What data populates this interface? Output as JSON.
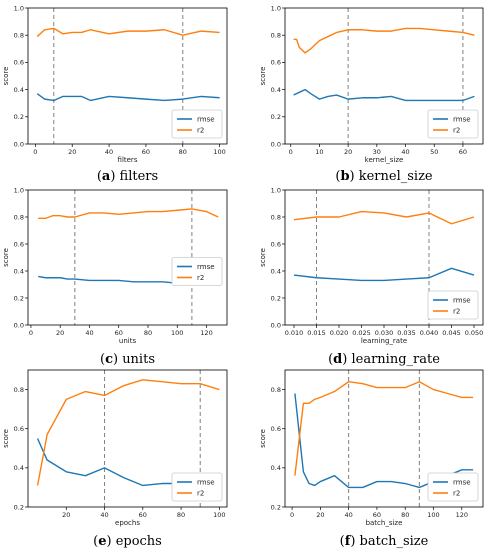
{
  "colors": {
    "rmse": "#1f77b4",
    "r2": "#ff7f0e",
    "vline": "#808080"
  },
  "chart_data": [
    {
      "type": "line",
      "caption_letter": "a",
      "caption_text": " filters",
      "xlabel": "filters",
      "ylabel": "score",
      "xlim": [
        -4,
        104
      ],
      "ylim": [
        0.0,
        1.0
      ],
      "xticks": [
        0,
        20,
        40,
        60,
        80,
        100
      ],
      "xtick_labels": [
        "0",
        "20",
        "40",
        "60",
        "80",
        "100"
      ],
      "yticks": [
        0.0,
        0.2,
        0.4,
        0.6,
        0.8,
        1.0
      ],
      "ytick_labels": [
        "0.0",
        "0.2",
        "0.4",
        "0.6",
        "0.8",
        "1.0"
      ],
      "vlines": [
        10,
        80
      ],
      "legend_position": "bottom-right",
      "series": [
        {
          "name": "rmse",
          "x": [
            1,
            5,
            10,
            15,
            20,
            25,
            30,
            40,
            50,
            60,
            70,
            80,
            90,
            100
          ],
          "y": [
            0.37,
            0.33,
            0.32,
            0.35,
            0.35,
            0.35,
            0.32,
            0.35,
            0.34,
            0.33,
            0.32,
            0.33,
            0.35,
            0.34
          ]
        },
        {
          "name": "r2",
          "x": [
            1,
            5,
            10,
            15,
            20,
            25,
            30,
            40,
            50,
            60,
            70,
            80,
            90,
            100
          ],
          "y": [
            0.79,
            0.84,
            0.85,
            0.81,
            0.82,
            0.82,
            0.84,
            0.81,
            0.83,
            0.83,
            0.84,
            0.8,
            0.83,
            0.82
          ]
        }
      ]
    },
    {
      "type": "line",
      "caption_letter": "b",
      "caption_text": " kernel_size",
      "xlabel": "kernel_size",
      "ylabel": "score",
      "xlim": [
        -2,
        67
      ],
      "ylim": [
        0.0,
        1.0
      ],
      "xticks": [
        0,
        10,
        20,
        30,
        40,
        50,
        60
      ],
      "xtick_labels": [
        "0",
        "10",
        "20",
        "30",
        "40",
        "50",
        "60"
      ],
      "yticks": [
        0.0,
        0.2,
        0.4,
        0.6,
        0.8,
        1.0
      ],
      "ytick_labels": [
        "0.0",
        "0.2",
        "0.4",
        "0.6",
        "0.8",
        "1.0"
      ],
      "vlines": [
        20,
        60
      ],
      "legend_position": "bottom-right",
      "series": [
        {
          "name": "rmse",
          "x": [
            1,
            3,
            5,
            7,
            10,
            13,
            16,
            20,
            25,
            30,
            35,
            40,
            45,
            50,
            55,
            60,
            64
          ],
          "y": [
            0.36,
            0.38,
            0.4,
            0.37,
            0.33,
            0.35,
            0.36,
            0.33,
            0.34,
            0.34,
            0.35,
            0.32,
            0.32,
            0.32,
            0.32,
            0.32,
            0.35
          ]
        },
        {
          "name": "r2",
          "x": [
            1,
            2,
            3,
            5,
            7,
            10,
            13,
            16,
            20,
            25,
            30,
            35,
            40,
            45,
            50,
            55,
            60,
            64
          ],
          "y": [
            0.77,
            0.77,
            0.71,
            0.67,
            0.7,
            0.76,
            0.79,
            0.82,
            0.84,
            0.84,
            0.83,
            0.83,
            0.85,
            0.85,
            0.84,
            0.83,
            0.82,
            0.8
          ]
        }
      ]
    },
    {
      "type": "line",
      "caption_letter": "c",
      "caption_text": " units",
      "xlabel": "units",
      "ylabel": "score",
      "xlim": [
        -2,
        134
      ],
      "ylim": [
        0.0,
        1.0
      ],
      "xticks": [
        0,
        20,
        40,
        60,
        80,
        100,
        120
      ],
      "xtick_labels": [
        "0",
        "20",
        "40",
        "60",
        "80",
        "100",
        "120"
      ],
      "yticks": [
        0.0,
        0.2,
        0.4,
        0.6,
        0.8,
        1.0
      ],
      "ytick_labels": [
        "0.0",
        "0.2",
        "0.4",
        "0.6",
        "0.8",
        "1.0"
      ],
      "vlines": [
        30,
        110
      ],
      "legend_position": "center-right",
      "series": [
        {
          "name": "rmse",
          "x": [
            5,
            10,
            15,
            20,
            25,
            30,
            40,
            50,
            60,
            70,
            80,
            90,
            100,
            110,
            120,
            128
          ],
          "y": [
            0.36,
            0.35,
            0.35,
            0.35,
            0.34,
            0.34,
            0.33,
            0.33,
            0.33,
            0.32,
            0.32,
            0.32,
            0.31,
            0.31,
            0.33,
            0.36
          ]
        },
        {
          "name": "r2",
          "x": [
            5,
            10,
            15,
            20,
            25,
            30,
            40,
            50,
            60,
            70,
            80,
            90,
            100,
            110,
            120,
            128
          ],
          "y": [
            0.79,
            0.79,
            0.81,
            0.81,
            0.8,
            0.8,
            0.83,
            0.83,
            0.82,
            0.83,
            0.84,
            0.84,
            0.85,
            0.86,
            0.84,
            0.8
          ]
        }
      ]
    },
    {
      "type": "line",
      "caption_letter": "d",
      "caption_text": " learning_rate",
      "xlabel": "learning_rate",
      "ylabel": "score",
      "xlim": [
        0.008,
        0.052
      ],
      "ylim": [
        0.0,
        1.0
      ],
      "xticks": [
        0.01,
        0.015,
        0.02,
        0.025,
        0.03,
        0.035,
        0.04,
        0.045,
        0.05
      ],
      "xtick_labels": [
        "0.010",
        "0.015",
        "0.020",
        "0.025",
        "0.030",
        "0.035",
        "0.040",
        "0.045",
        "0.050"
      ],
      "yticks": [
        0.0,
        0.2,
        0.4,
        0.6,
        0.8,
        1.0
      ],
      "ytick_labels": [
        "0.0",
        "0.2",
        "0.4",
        "0.6",
        "0.8",
        "1.0"
      ],
      "vlines": [
        0.015,
        0.04
      ],
      "legend_position": "bottom-right",
      "series": [
        {
          "name": "rmse",
          "x": [
            0.01,
            0.015,
            0.02,
            0.025,
            0.03,
            0.035,
            0.04,
            0.045,
            0.05
          ],
          "y": [
            0.37,
            0.35,
            0.34,
            0.33,
            0.33,
            0.34,
            0.35,
            0.42,
            0.37
          ]
        },
        {
          "name": "r2",
          "x": [
            0.01,
            0.015,
            0.02,
            0.025,
            0.03,
            0.035,
            0.04,
            0.045,
            0.05
          ],
          "y": [
            0.78,
            0.8,
            0.8,
            0.84,
            0.83,
            0.8,
            0.83,
            0.75,
            0.8
          ]
        }
      ]
    },
    {
      "type": "line",
      "caption_letter": "e",
      "caption_text": " epochs",
      "xlabel": "epochs",
      "ylabel": "score",
      "xlim": [
        0,
        104
      ],
      "ylim": [
        0.2,
        0.9
      ],
      "xticks": [
        20,
        40,
        60,
        80,
        100
      ],
      "xtick_labels": [
        "20",
        "40",
        "60",
        "80",
        "100"
      ],
      "yticks": [
        0.2,
        0.4,
        0.6,
        0.8
      ],
      "ytick_labels": [
        "0.2",
        "0.4",
        "0.6",
        "0.8"
      ],
      "vlines": [
        40,
        90
      ],
      "legend_position": "bottom-right",
      "series": [
        {
          "name": "rmse",
          "x": [
            5,
            10,
            20,
            30,
            40,
            50,
            60,
            70,
            80,
            90,
            100
          ],
          "y": [
            0.55,
            0.44,
            0.38,
            0.36,
            0.4,
            0.35,
            0.31,
            0.32,
            0.32,
            0.32,
            0.35
          ]
        },
        {
          "name": "r2",
          "x": [
            5,
            10,
            20,
            30,
            40,
            50,
            60,
            70,
            80,
            90,
            100
          ],
          "y": [
            0.31,
            0.57,
            0.75,
            0.79,
            0.77,
            0.82,
            0.85,
            0.84,
            0.83,
            0.83,
            0.8
          ]
        }
      ]
    },
    {
      "type": "line",
      "caption_letter": "f",
      "caption_text": " batch_size",
      "xlabel": "batch_size",
      "ylabel": "score",
      "xlim": [
        -5,
        135
      ],
      "ylim": [
        0.2,
        0.9
      ],
      "xticks": [
        0,
        20,
        40,
        60,
        80,
        100,
        120
      ],
      "xtick_labels": [
        "0",
        "20",
        "40",
        "60",
        "80",
        "100",
        "120"
      ],
      "yticks": [
        0.2,
        0.4,
        0.6,
        0.8
      ],
      "ytick_labels": [
        "0.2",
        "0.4",
        "0.6",
        "0.8"
      ],
      "vlines": [
        40,
        90
      ],
      "legend_position": "bottom-right",
      "series": [
        {
          "name": "rmse",
          "x": [
            2,
            8,
            12,
            16,
            20,
            30,
            40,
            50,
            60,
            70,
            80,
            90,
            100,
            110,
            120,
            128
          ],
          "y": [
            0.78,
            0.38,
            0.32,
            0.31,
            0.33,
            0.36,
            0.3,
            0.3,
            0.33,
            0.33,
            0.32,
            0.3,
            0.33,
            0.36,
            0.39,
            0.39
          ]
        },
        {
          "name": "r2",
          "x": [
            2,
            8,
            12,
            16,
            20,
            30,
            40,
            50,
            60,
            70,
            80,
            90,
            100,
            110,
            120,
            128
          ],
          "y": [
            0.36,
            0.73,
            0.73,
            0.75,
            0.76,
            0.79,
            0.84,
            0.83,
            0.81,
            0.81,
            0.81,
            0.84,
            0.8,
            0.78,
            0.76,
            0.76
          ]
        }
      ]
    }
  ]
}
